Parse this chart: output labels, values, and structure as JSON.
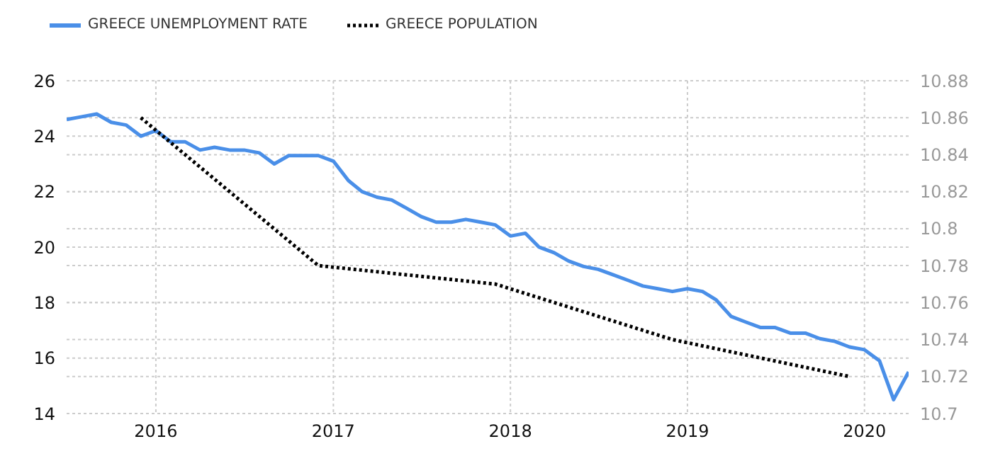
{
  "chart_data": {
    "type": "line",
    "legend": "top left",
    "grid": true,
    "xlim": [
      "2015-07",
      "2020-04"
    ],
    "xticks": [
      "2016",
      "2017",
      "2018",
      "2019",
      "2020"
    ],
    "ylim": [
      14,
      26
    ],
    "yticks": [
      14,
      16,
      18,
      20,
      22,
      24,
      26
    ],
    "y2lim": [
      10.7,
      10.88
    ],
    "y2ticks": [
      10.7,
      10.72,
      10.74,
      10.76,
      10.78,
      10.8,
      10.82,
      10.84,
      10.86,
      10.88
    ],
    "series": [
      {
        "name": "GREECE UNEMPLOYMENT RATE",
        "color": "#4a8fe8",
        "line_style": "solid",
        "x": [
          "2015-07",
          "2015-08",
          "2015-09",
          "2015-10",
          "2015-11",
          "2015-12",
          "2016-01",
          "2016-02",
          "2016-03",
          "2016-04",
          "2016-05",
          "2016-06",
          "2016-07",
          "2016-08",
          "2016-09",
          "2016-10",
          "2016-11",
          "2016-12",
          "2017-01",
          "2017-02",
          "2017-03",
          "2017-04",
          "2017-05",
          "2017-06",
          "2017-07",
          "2017-08",
          "2017-09",
          "2017-10",
          "2017-11",
          "2017-12",
          "2018-01",
          "2018-02",
          "2018-03",
          "2018-04",
          "2018-05",
          "2018-06",
          "2018-07",
          "2018-08",
          "2018-09",
          "2018-10",
          "2018-11",
          "2018-12",
          "2019-01",
          "2019-02",
          "2019-03",
          "2019-04",
          "2019-05",
          "2019-06",
          "2019-07",
          "2019-08",
          "2019-09",
          "2019-10",
          "2019-11",
          "2019-12",
          "2020-01",
          "2020-02",
          "2020-03",
          "2020-04"
        ],
        "values": [
          24.6,
          24.7,
          24.8,
          24.5,
          24.4,
          24.0,
          24.2,
          23.8,
          23.8,
          23.5,
          23.6,
          23.5,
          23.5,
          23.4,
          23.0,
          23.3,
          23.3,
          23.3,
          23.1,
          22.4,
          22.0,
          21.8,
          21.7,
          21.4,
          21.1,
          20.9,
          20.9,
          21.0,
          20.9,
          20.8,
          20.4,
          20.5,
          20.0,
          19.8,
          19.5,
          19.3,
          19.2,
          19.0,
          18.8,
          18.6,
          18.5,
          18.4,
          18.5,
          18.4,
          18.1,
          17.5,
          17.3,
          17.1,
          17.1,
          16.9,
          16.9,
          16.7,
          16.6,
          16.4,
          16.3,
          15.9,
          14.5,
          15.5
        ]
      },
      {
        "name": "GREECE POPULATION",
        "color": "#000000",
        "line_style": "dotted",
        "axis": "y2",
        "x": [
          "2015-12",
          "2016-12",
          "2017-12",
          "2018-12",
          "2019-12"
        ],
        "values": [
          10.86,
          10.78,
          10.77,
          10.74,
          10.72
        ]
      }
    ]
  }
}
